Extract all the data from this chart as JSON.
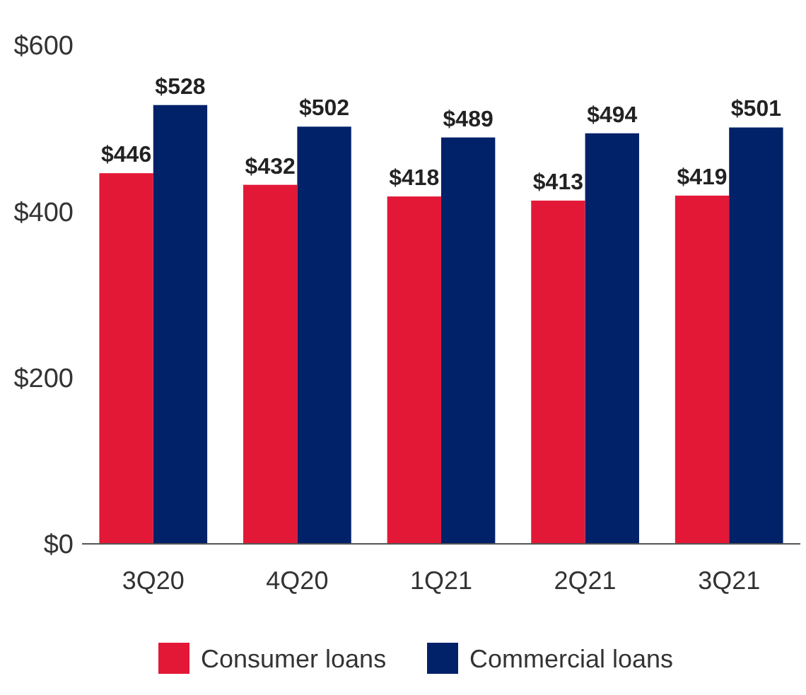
{
  "chart_data": {
    "type": "bar",
    "categories": [
      "3Q20",
      "4Q20",
      "1Q21",
      "2Q21",
      "3Q21"
    ],
    "series": [
      {
        "name": "Consumer loans",
        "color": "#e31837",
        "values": [
          446,
          432,
          418,
          413,
          419
        ],
        "value_labels": [
          "$446",
          "$432",
          "$418",
          "$413",
          "$419"
        ]
      },
      {
        "name": "Commercial loans",
        "color": "#012169",
        "values": [
          528,
          502,
          489,
          494,
          501
        ],
        "value_labels": [
          "$528",
          "$502",
          "$489",
          "$494",
          "$501"
        ]
      }
    ],
    "ylim": [
      0,
      600
    ],
    "yticks": [
      {
        "value": 0,
        "label": "$0"
      },
      {
        "value": 200,
        "label": "$200"
      },
      {
        "value": 400,
        "label": "$400"
      },
      {
        "value": 600,
        "label": "$600"
      }
    ],
    "grid": false,
    "legend": "bottom"
  }
}
